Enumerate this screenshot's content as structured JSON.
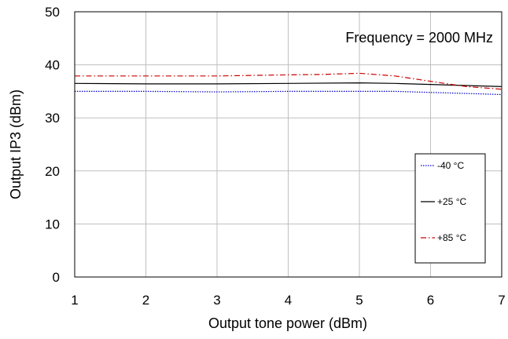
{
  "chart_data": {
    "type": "line",
    "title": "",
    "annotation": "Frequency = 2000 MHz",
    "xlabel": "Output tone power (dBm)",
    "ylabel": "Output IP3 (dBm)",
    "xlim": [
      1,
      7
    ],
    "ylim": [
      0,
      50
    ],
    "xticks": [
      1,
      2,
      3,
      4,
      5,
      6,
      7
    ],
    "yticks": [
      0,
      10,
      20,
      30,
      40,
      50
    ],
    "grid": true,
    "legend_position": "lower-right",
    "series": [
      {
        "name": "-40 °C",
        "color": "#0000cc",
        "dash": "dotted",
        "x": [
          1,
          2,
          3,
          4,
          5,
          5.5,
          6,
          6.5,
          7
        ],
        "y": [
          35.0,
          35.0,
          34.9,
          35.0,
          35.0,
          35.0,
          34.8,
          34.6,
          34.4
        ]
      },
      {
        "name": "+25 °C",
        "color": "#000000",
        "dash": "solid",
        "x": [
          1,
          2,
          3,
          4,
          5,
          5.5,
          6,
          6.5,
          7
        ],
        "y": [
          36.5,
          36.4,
          36.4,
          36.5,
          36.6,
          36.5,
          36.3,
          36.1,
          35.9
        ]
      },
      {
        "name": "+85 °C",
        "color": "#cc0000",
        "dash": "dashdot",
        "x": [
          1,
          2,
          3,
          4,
          4.5,
          5,
          5.5,
          6,
          6.5,
          7
        ],
        "y": [
          37.9,
          37.9,
          37.9,
          38.1,
          38.2,
          38.4,
          37.9,
          36.9,
          35.9,
          35.4
        ]
      }
    ]
  }
}
